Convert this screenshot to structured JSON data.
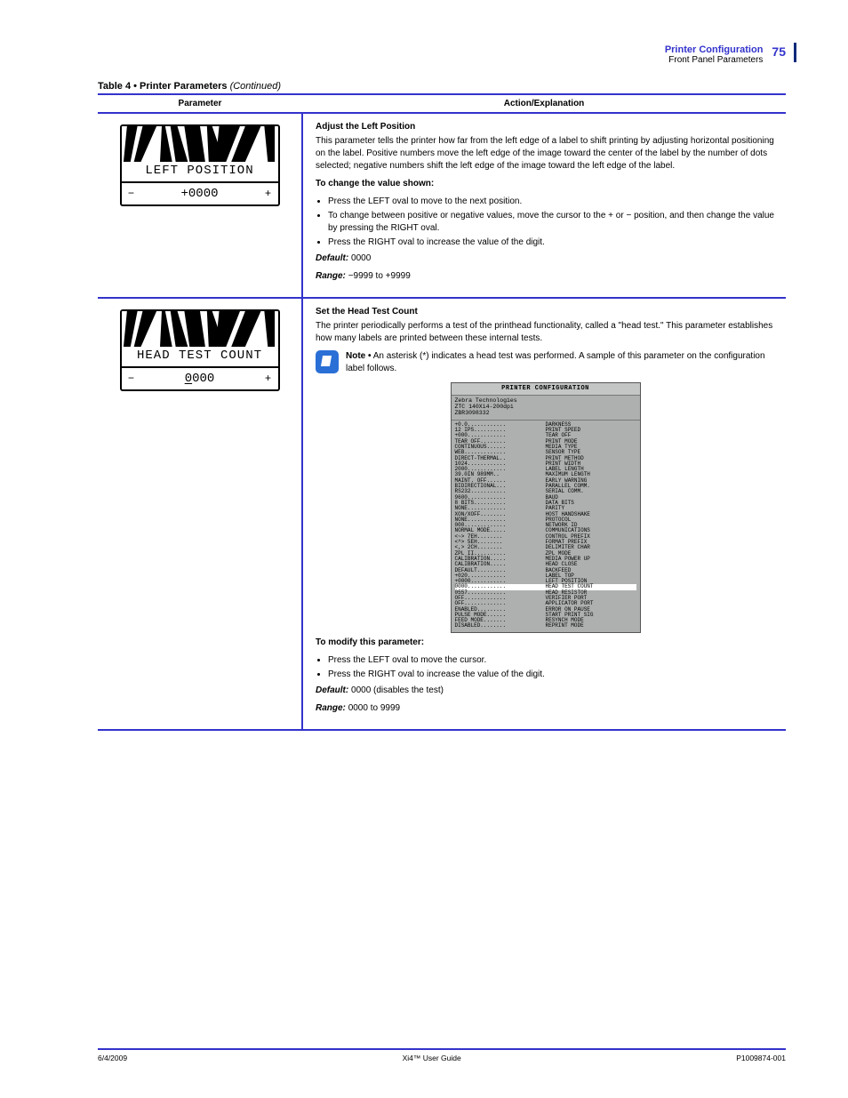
{
  "accent_color": "#3333cc",
  "page_num_top": "75",
  "header_title": "Printer Configuration",
  "header_subtitle": "Front Panel Parameters",
  "section_title": "Table 4 • Printer Parameters",
  "continued": "(Continued)",
  "th_left": "Parameter",
  "th_right": "Action/Explanation",
  "row_left_position": {
    "lcd_label": "LEFT POSITION",
    "lcd_value": "+0000",
    "heading": "Adjust the Left Position",
    "para": "This parameter tells the printer how far from the left edge of a label to shift printing by adjusting horizontal positioning on the label. Positive numbers move the left edge of the image toward the center of the label by the number of dots selected; negative numbers shift the left edge of the image toward the left edge of the label.",
    "label_to": "To change the value shown:",
    "b1a": "Press the LEFT oval to move to the next position.",
    "b2a": "To change between positive or negative values, move the cursor to the + or − position, and then change the value by pressing the RIGHT oval.",
    "b3a": "Press the RIGHT oval to increase the value of the digit.",
    "kw_default": "Default:",
    "default_val": "0000",
    "kw_range": "Range:",
    "range_val": "−9999 to +9999"
  },
  "row_head_test": {
    "lcd_label": "HEAD TEST COUNT",
    "lcd_value_underline_first": "0",
    "lcd_value_rest": "000",
    "heading": "Set the Head Test Count",
    "para": "The printer periodically performs a test of the printhead functionality, called a \"head test.\" This parameter establishes how many labels are printed between these internal tests.",
    "note_label": "Note •",
    "note_text": "An asterisk (*) indicates a head test was performed. A sample of this parameter on the configuration label follows.",
    "label_to": "To modify this parameter:",
    "b1": "Press the LEFT oval to move the cursor.",
    "b2": "Press the RIGHT oval to increase the value of the digit.",
    "kw_default": "Default:",
    "default_val": "0000 (disables the test)",
    "kw_range": "Range:",
    "range_val": "0000 to 9999"
  },
  "config_label": {
    "title": "PRINTER CONFIGURATION",
    "head1": "Zebra Technologies",
    "head2": "ZTC 140Xi4-200dpi",
    "head3": "ZBR3098332",
    "rows": [
      {
        "v": "+0.0",
        "n": "DARKNESS"
      },
      {
        "v": "12 IPS",
        "n": "PRINT SPEED"
      },
      {
        "v": "+000",
        "n": "TEAR OFF"
      },
      {
        "v": "TEAR OFF",
        "n": "PRINT MODE"
      },
      {
        "v": "CONTINUOUS",
        "n": "MEDIA TYPE"
      },
      {
        "v": "WEB",
        "n": "SENSOR TYPE"
      },
      {
        "v": "DIRECT-THERMAL",
        "n": "PRINT METHOD"
      },
      {
        "v": "1024",
        "n": "PRINT WIDTH"
      },
      {
        "v": "2000",
        "n": "LABEL LENGTH"
      },
      {
        "v": "39.0IN   989MM",
        "n": "MAXIMUM LENGTH"
      },
      {
        "v": "MAINT. OFF",
        "n": "EARLY WARNING"
      },
      {
        "v": "BIDIRECTIONAL",
        "n": "PARALLEL COMM."
      },
      {
        "v": "RS232",
        "n": "SERIAL COMM."
      },
      {
        "v": "9600",
        "n": "BAUD"
      },
      {
        "v": "8 BITS",
        "n": "DATA BITS"
      },
      {
        "v": "NONE",
        "n": "PARITY"
      },
      {
        "v": "XON/XOFF",
        "n": "HOST HANDSHAKE"
      },
      {
        "v": "NONE",
        "n": "PROTOCOL"
      },
      {
        "v": "000",
        "n": "NETWORK ID"
      },
      {
        "v": "NORMAL MODE",
        "n": "COMMUNICATIONS"
      },
      {
        "v": "<~>  7EH",
        "n": "CONTROL PREFIX"
      },
      {
        "v": "<^>  5EH",
        "n": "FORMAT PREFIX"
      },
      {
        "v": "<,>  2CH",
        "n": "DELIMITER CHAR"
      },
      {
        "v": "ZPL II",
        "n": "ZPL MODE"
      },
      {
        "v": "CALIBRATION",
        "n": "MEDIA POWER UP"
      },
      {
        "v": "CALIBRATION",
        "n": "HEAD CLOSE"
      },
      {
        "v": "DEFAULT",
        "n": "BACKFEED"
      },
      {
        "v": "+020",
        "n": "LABEL TOP"
      },
      {
        "v": "+0000",
        "n": "LEFT POSITION"
      },
      {
        "v": "0000",
        "n": "HEAD TEST COUNT",
        "hl": true
      },
      {
        "v": "0557",
        "n": "HEAD RESISTOR"
      },
      {
        "v": "OFF",
        "n": "VERIFIER PORT"
      },
      {
        "v": "OFF",
        "n": "APPLICATOR PORT"
      },
      {
        "v": "ENABLED",
        "n": "ERROR ON PAUSE"
      },
      {
        "v": "PULSE MODE",
        "n": "START PRINT SIG"
      },
      {
        "v": "FEED MODE",
        "n": "RESYNCH MODE"
      },
      {
        "v": "DISABLED",
        "n": "REPRINT MODE"
      }
    ]
  },
  "footer_left": "6/4/2009",
  "footer_center": "Xi4™ User Guide",
  "footer_right": "P1009874-001"
}
